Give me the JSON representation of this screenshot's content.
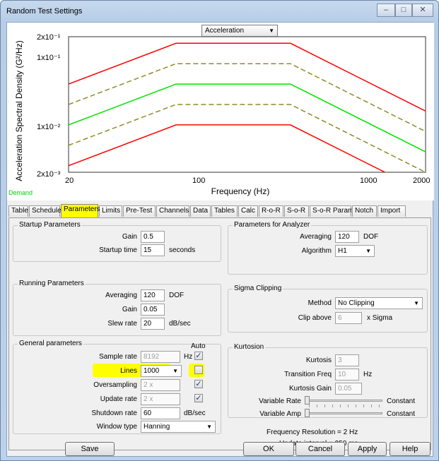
{
  "window": {
    "title": "Random Test Settings",
    "minimize": "–",
    "maximize": "□",
    "close": "✕"
  },
  "plot": {
    "selector_value": "Acceleration",
    "demand_label": "Demand",
    "chart_data": {
      "type": "line",
      "xlabel": "Frequency (Hz)",
      "ylabel": "Acceleration Spectral Density (G²/Hz)",
      "x_scale": "log",
      "y_scale": "log",
      "xlim": [
        20,
        2000
      ],
      "ylim": [
        0.002,
        0.2
      ],
      "x_ticks": [
        "20",
        "100",
        "1000",
        "2000"
      ],
      "y_ticks": [
        "2x10⁻¹",
        "1x10⁻¹",
        "1x10⁻²",
        "2x10⁻³"
      ],
      "series": [
        {
          "color": "#ff0000",
          "style": "solid",
          "x": [
            20,
            80,
            350,
            2000
          ],
          "y": [
            0.04,
            0.16,
            0.16,
            0.016
          ]
        },
        {
          "color": "#8c8c28",
          "style": "dashed",
          "x": [
            20,
            80,
            350,
            2000
          ],
          "y": [
            0.02,
            0.08,
            0.08,
            0.008
          ]
        },
        {
          "color": "#00e000",
          "style": "solid",
          "x": [
            20,
            80,
            350,
            2000
          ],
          "y": [
            0.01,
            0.04,
            0.04,
            0.004
          ]
        },
        {
          "color": "#8c8c28",
          "style": "dashed",
          "x": [
            20,
            80,
            350,
            2000
          ],
          "y": [
            0.005,
            0.02,
            0.02,
            0.002
          ]
        },
        {
          "color": "#ff0000",
          "style": "solid",
          "x": [
            20,
            80,
            350,
            2000
          ],
          "y": [
            0.0025,
            0.01,
            0.01,
            0.001
          ]
        }
      ]
    }
  },
  "tabs": [
    "Table",
    "Schedule",
    "Parameters",
    "Limits",
    "Pre-Test",
    "Channels",
    "Data",
    "Tables",
    "Calc",
    "R-o-R",
    "S-o-R",
    "S-o-R Param",
    "Notch",
    "Import"
  ],
  "active_tab": "Parameters",
  "startup": {
    "title": "Startup Parameters",
    "gain_label": "Gain",
    "gain_value": "0.5",
    "startup_time_label": "Startup time",
    "startup_time_value": "15",
    "startup_time_unit": "seconds"
  },
  "running": {
    "title": "Running Parameters",
    "averaging_label": "Averaging",
    "averaging_value": "120",
    "averaging_unit": "DOF",
    "gain_label": "Gain",
    "gain_value": "0.05",
    "slew_label": "Slew rate",
    "slew_value": "20",
    "slew_unit": "dB/sec"
  },
  "general": {
    "title": "General parameters",
    "auto_label": "Auto",
    "sample_rate_label": "Sample rate",
    "sample_rate_value": "8192",
    "sample_rate_unit": "Hz",
    "lines_label": "Lines",
    "lines_value": "1000",
    "oversampling_label": "Oversampling",
    "oversampling_value": "2 x",
    "update_rate_label": "Update rate",
    "update_rate_value": "2 x",
    "shutdown_label": "Shutdown rate",
    "shutdown_value": "60",
    "shutdown_unit": "dB/sec",
    "window_label": "Window type",
    "window_value": "Hanning",
    "check_mark": "✓"
  },
  "analyzer": {
    "title": "Parameters for Analyzer",
    "averaging_label": "Averaging",
    "averaging_value": "120",
    "averaging_unit": "DOF",
    "algorithm_label": "Algorithm",
    "algorithm_value": "H1"
  },
  "sigma": {
    "title": "Sigma Clipping",
    "method_label": "Method",
    "method_value": "No Clipping",
    "clip_label": "Clip above",
    "clip_value": "6",
    "clip_unit": "x Sigma"
  },
  "kurtosis": {
    "title": "Kurtosion",
    "kurtosis_label": "Kurtosis",
    "kurtosis_value": "3",
    "transition_label": "Transition Freq",
    "transition_value": "10",
    "transition_unit": "Hz",
    "gain_label": "Kurtosis Gain",
    "gain_value": "0.05",
    "var_rate_label": "Variable Rate",
    "var_amp_label": "Variable Amp",
    "constant_label": "Constant"
  },
  "info": {
    "freq_res": "Frequency Resolution =  2 Hz",
    "update_interval": "Update interval =  250 ms"
  },
  "buttons": {
    "save": "Save",
    "ok": "OK",
    "cancel": "Cancel",
    "apply": "Apply",
    "help": "Help"
  }
}
